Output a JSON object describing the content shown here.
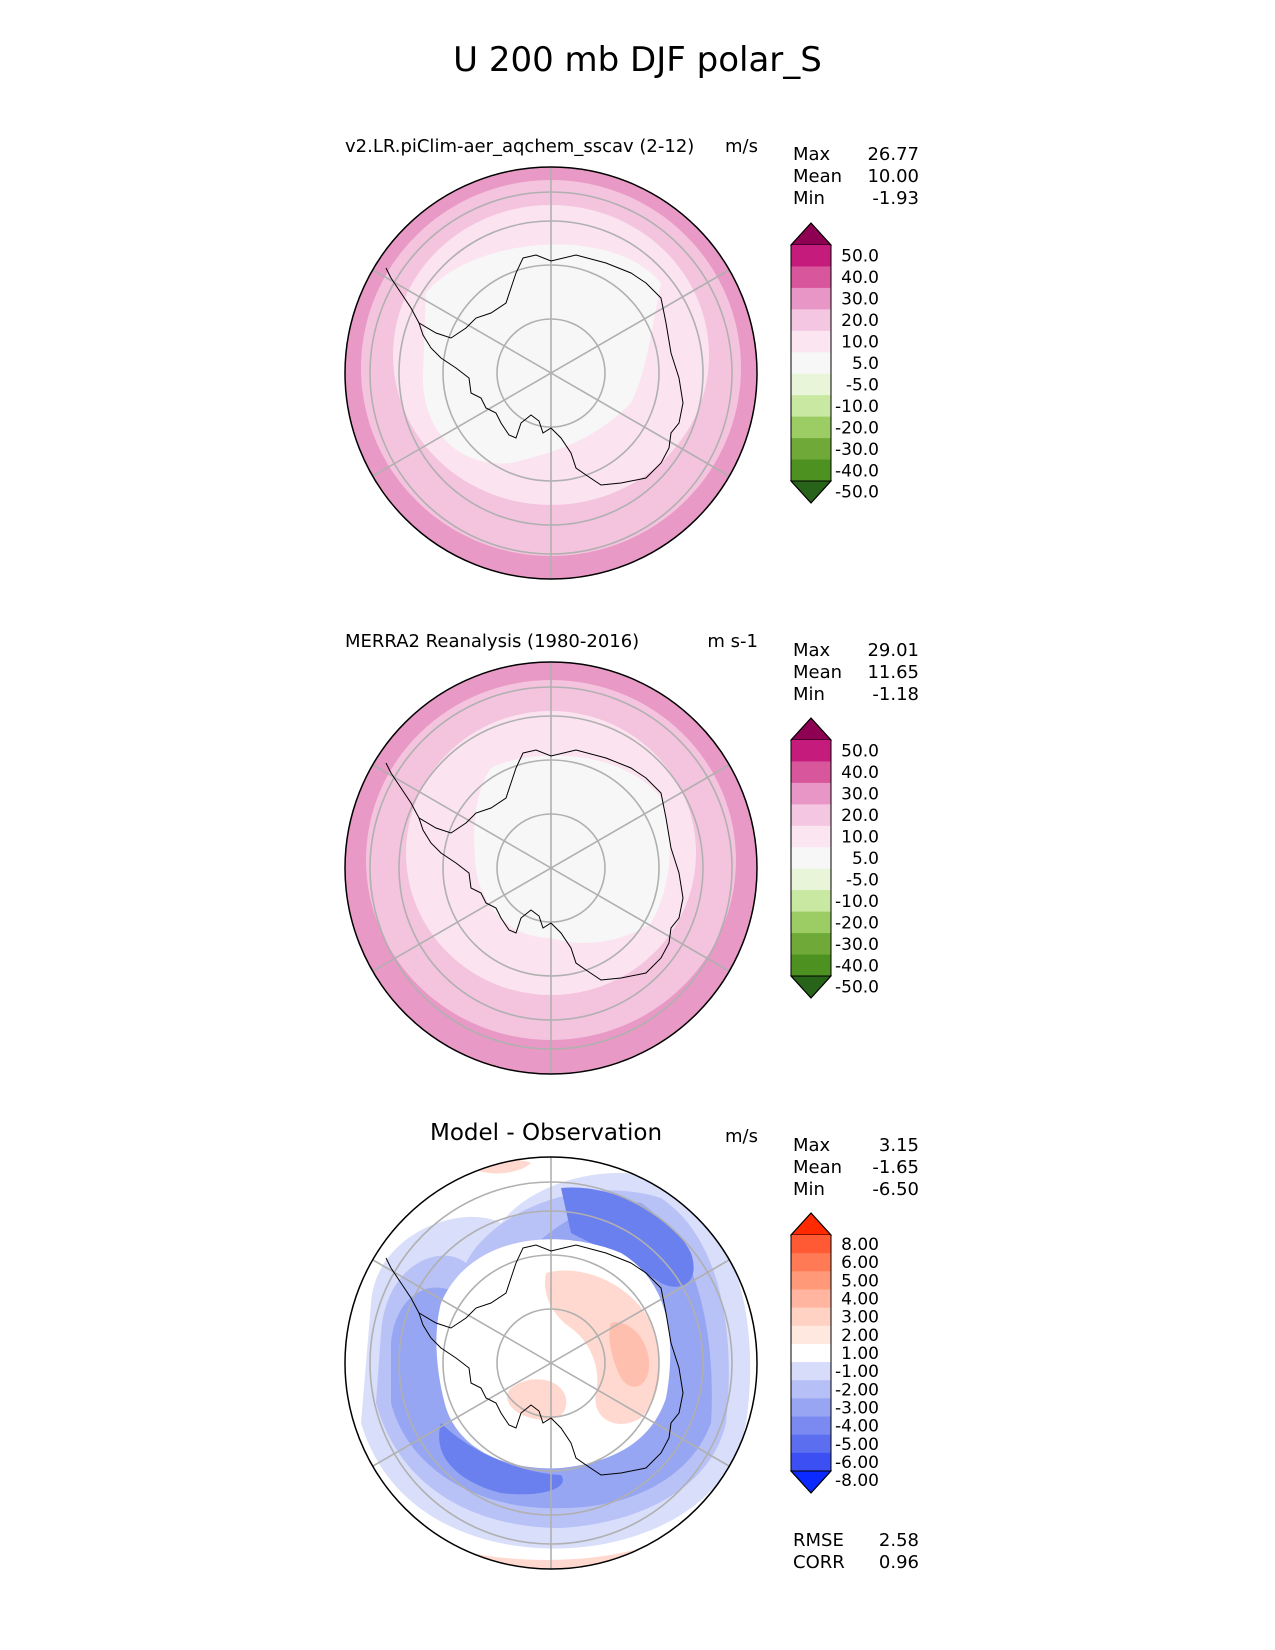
{
  "title": "U 200 mb DJF polar_S",
  "panels": [
    {
      "id": "model",
      "title": "v2.LR.piClim-aer_aqchem_sscav (2-12)",
      "units": "m/s",
      "stats": [
        {
          "label": "Max",
          "value": "26.77"
        },
        {
          "label": "Mean",
          "value": "10.00"
        },
        {
          "label": "Min",
          "value": "-1.93"
        }
      ],
      "colorbar": {
        "ticks": [
          "50.0",
          "40.0",
          "30.0",
          "20.0",
          "10.0",
          "5.0",
          "-5.0",
          "-10.0",
          "-20.0",
          "-30.0",
          "-40.0",
          "-50.0"
        ],
        "colors": [
          "#8e0152",
          "#c51b7d",
          "#de77ae",
          "#f1b6da",
          "#fde0ef",
          "#f7f7f7",
          "#e6f5d0",
          "#b8e186",
          "#7fbc41",
          "#4d9221",
          "#276419"
        ],
        "over": "#8e0152",
        "under": "#276419",
        "band_colors_full": [
          "#8e0152",
          "#c51b7d",
          "#d8569b",
          "#e896c6",
          "#f4c6e1",
          "#fbe5f0",
          "#f7f7f7",
          "#e8f5d8",
          "#c9e8a1",
          "#9ccd64",
          "#6faa38",
          "#4d9221",
          "#276419"
        ]
      }
    },
    {
      "id": "obs",
      "title": "MERRA2 Reanalysis (1980-2016)",
      "units": "m s-1",
      "stats": [
        {
          "label": "Max",
          "value": "29.01"
        },
        {
          "label": "Mean",
          "value": "11.65"
        },
        {
          "label": "Min",
          "value": "-1.18"
        }
      ]
    },
    {
      "id": "diff",
      "title": "Model - Observation",
      "units": "m/s",
      "stats": [
        {
          "label": "Max",
          "value": "3.15"
        },
        {
          "label": "Mean",
          "value": "-1.65"
        },
        {
          "label": "Min",
          "value": "-6.50"
        }
      ],
      "extra_stats": [
        {
          "label": "RMSE",
          "value": "2.58"
        },
        {
          "label": "CORR",
          "value": "0.96"
        }
      ],
      "colorbar": {
        "ticks": [
          "8.00",
          "6.00",
          "5.00",
          "4.00",
          "3.00",
          "2.00",
          "1.00",
          "-1.00",
          "-2.00",
          "-3.00",
          "-4.00",
          "-5.00",
          "-6.00",
          "-8.00"
        ],
        "band_colors_full": [
          "#ff2a00",
          "#ff5a33",
          "#ff7a55",
          "#ff9977",
          "#ffb5a0",
          "#ffd2c4",
          "#ffe8e0",
          "#ffffff",
          "#d7dcfa",
          "#b6c0f6",
          "#97a5f2",
          "#7a8af0",
          "#5b6ef0",
          "#3b4ff2",
          "#0a2aff"
        ]
      }
    }
  ],
  "colors": {
    "seq_pink": [
      "#e899c5",
      "#f4c4df",
      "#fbe3ef",
      "#f7f7f7"
    ],
    "diff_blue": [
      "#d9defa",
      "#b8c2f6",
      "#97a6f2",
      "#6a80ee",
      "#4a62ee"
    ],
    "diff_red": [
      "#ffd9cf",
      "#ffbfae"
    ],
    "grid": "#b0b0b0",
    "coast": "#000000"
  }
}
